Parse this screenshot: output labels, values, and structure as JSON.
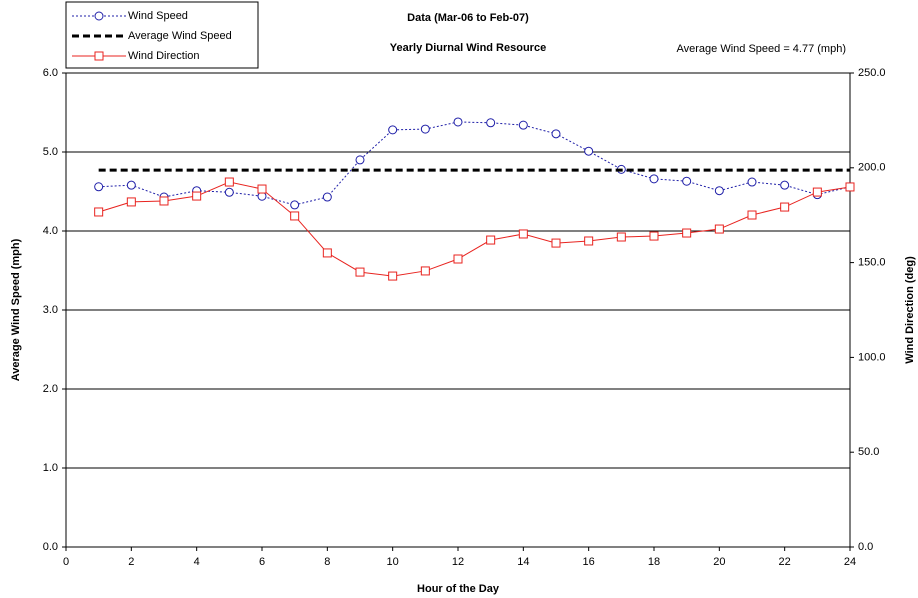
{
  "chart_data": {
    "type": "line",
    "title": "Data (Mar-06 to Feb-07)",
    "subtitle": "Yearly Diurnal Wind Resource",
    "annotation": "Average Wind Speed = 4.77 (mph)",
    "x_label": "Hour of the Day",
    "y_label": "Average Wind Speed (mph)",
    "y2_label": "Wind Direction (deg)",
    "x": [
      1,
      2,
      3,
      4,
      5,
      6,
      7,
      8,
      9,
      10,
      11,
      12,
      13,
      14,
      15,
      16,
      17,
      18,
      19,
      20,
      21,
      22,
      23,
      24
    ],
    "series": [
      {
        "name": "Wind Speed",
        "color": "#1f1fa8",
        "dash": "2,2",
        "marker": "circle",
        "values": [
          4.56,
          4.58,
          4.43,
          4.51,
          4.49,
          4.44,
          4.33,
          4.43,
          4.9,
          5.28,
          5.29,
          5.38,
          5.37,
          5.34,
          5.23,
          5.01,
          4.78,
          4.66,
          4.63,
          4.51,
          4.62,
          4.58,
          4.46,
          4.56
        ]
      },
      {
        "name": "Average Wind Speed",
        "color": "#000000",
        "dash": "7,4",
        "marker": "none",
        "values": [
          4.77,
          4.77,
          4.77,
          4.77,
          4.77,
          4.77,
          4.77,
          4.77,
          4.77,
          4.77,
          4.77,
          4.77,
          4.77,
          4.77,
          4.77,
          4.77,
          4.77,
          4.77,
          4.77,
          4.77,
          4.77,
          4.77,
          4.77,
          4.77
        ]
      },
      {
        "name": "Wind Direction",
        "color": "#e8231f",
        "dash": "none",
        "marker": "square",
        "axis": "y2",
        "values": [
          176.7,
          182.0,
          182.5,
          185.1,
          192.5,
          188.8,
          174.6,
          155.1,
          145.0,
          142.9,
          145.6,
          151.9,
          161.9,
          165.1,
          160.3,
          161.4,
          163.5,
          164.0,
          165.6,
          167.7,
          175.1,
          179.3,
          187.2,
          189.9
        ]
      }
    ],
    "xlim": [
      0,
      24
    ],
    "xticks": [
      0,
      2,
      4,
      6,
      8,
      10,
      12,
      14,
      16,
      18,
      20,
      22,
      24
    ],
    "ylim": [
      0,
      6
    ],
    "yticks": [
      {
        "value": 0,
        "label": "0.0"
      },
      {
        "value": 1,
        "label": "1.0"
      },
      {
        "value": 2,
        "label": "2.0"
      },
      {
        "value": 3,
        "label": "3.0"
      },
      {
        "value": 4,
        "label": "4.0"
      },
      {
        "value": 5,
        "label": "5.0"
      },
      {
        "value": 6,
        "label": "6.0"
      }
    ],
    "y2lim": [
      0,
      250
    ],
    "y2ticks": [
      {
        "value": 0,
        "label": "0.0"
      },
      {
        "value": 50,
        "label": "50.0"
      },
      {
        "value": 100,
        "label": "100.0"
      },
      {
        "value": 150,
        "label": "150.0"
      },
      {
        "value": 200,
        "label": "200.0"
      },
      {
        "value": 250,
        "label": "250.0"
      }
    ],
    "grid": true,
    "legend": "top-left"
  }
}
